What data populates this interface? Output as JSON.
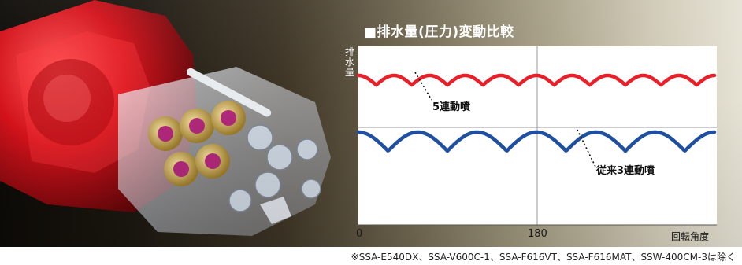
{
  "chart_data": {
    "type": "line",
    "title": "■排水量(圧力)変動比較",
    "ylabel": "排水量",
    "xlabel": "回転角度",
    "x_ticks": [
      "0",
      "180"
    ],
    "grid": true,
    "series": [
      {
        "name": "5連動噴",
        "color": "#e8202a",
        "cycles": 10,
        "level": "upper",
        "pattern": "small ripple"
      },
      {
        "name": "従来3連動噴",
        "color": "#1f4fa0",
        "cycles": 6,
        "level": "lower",
        "pattern": "large ripple"
      }
    ]
  },
  "footnote": "※SSA-E540DX、SSA-V600C-1、SSA-F616VT、SSA-F616MAT、SSW-400CM-3は除く"
}
